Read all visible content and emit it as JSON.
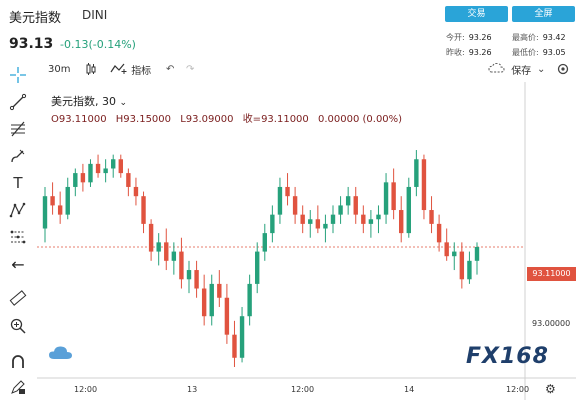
{
  "header": {
    "symbol_name": "美元指数",
    "symbol_code": "DINI",
    "last_price": "93.13",
    "change": "-0.13(-0.14%)",
    "trade_button": "交易",
    "fullscreen_button": "全屏",
    "stats": {
      "open_label": "今开:",
      "open_value": "93.26",
      "high_label": "最高价:",
      "high_value": "93.42",
      "prev_close_label": "昨收:",
      "prev_close_value": "93.26",
      "low_label": "最低价:",
      "low_value": "93.05"
    }
  },
  "toolbar": {
    "interval": "30m",
    "indicators_label": "指标",
    "save_label": "保存"
  },
  "legend": {
    "title": "美元指数, 30",
    "open": "O93.11000",
    "high": "H93.15000",
    "low": "L93.09000",
    "close": "收=93.11000",
    "change": "0.00000 (0.00%)"
  },
  "price_tag": "93.11000",
  "y_axis_label": "93.00000",
  "x_axis_labels": [
    "12:00",
    "13",
    "12:00",
    "14",
    "12:00"
  ],
  "logo_text": "FX168",
  "colors": {
    "up": "#26a17b",
    "down": "#e0533f",
    "accent": "#2aa4d8"
  },
  "chart_data": {
    "type": "candlestick",
    "ylim": [
      92.85,
      93.45
    ],
    "current_price": 93.11,
    "candles": [
      [
        93.15,
        93.24,
        93.12,
        93.22
      ],
      [
        93.22,
        93.25,
        93.18,
        93.2
      ],
      [
        93.2,
        93.23,
        93.16,
        93.18
      ],
      [
        93.18,
        93.26,
        93.17,
        93.24
      ],
      [
        93.24,
        93.28,
        93.22,
        93.27
      ],
      [
        93.27,
        93.29,
        93.23,
        93.25
      ],
      [
        93.25,
        93.3,
        93.24,
        93.29
      ],
      [
        93.29,
        93.31,
        93.26,
        93.27
      ],
      [
        93.27,
        93.3,
        93.25,
        93.28
      ],
      [
        93.28,
        93.31,
        93.26,
        93.3
      ],
      [
        93.3,
        93.31,
        93.26,
        93.27
      ],
      [
        93.27,
        93.28,
        93.22,
        93.24
      ],
      [
        93.24,
        93.26,
        93.2,
        93.22
      ],
      [
        93.22,
        93.23,
        93.14,
        93.16
      ],
      [
        93.16,
        93.17,
        93.08,
        93.1
      ],
      [
        93.1,
        93.14,
        93.07,
        93.12
      ],
      [
        93.12,
        93.15,
        93.06,
        93.08
      ],
      [
        93.08,
        93.12,
        93.05,
        93.1
      ],
      [
        93.1,
        93.13,
        93.02,
        93.04
      ],
      [
        93.04,
        93.08,
        93.01,
        93.06
      ],
      [
        93.06,
        93.08,
        93.0,
        93.02
      ],
      [
        93.02,
        93.05,
        92.94,
        92.96
      ],
      [
        92.96,
        93.05,
        92.94,
        93.03
      ],
      [
        93.03,
        93.06,
        92.98,
        93.0
      ],
      [
        93.0,
        93.03,
        92.9,
        92.92
      ],
      [
        92.92,
        92.95,
        92.85,
        92.87
      ],
      [
        92.87,
        92.98,
        92.86,
        92.96
      ],
      [
        92.96,
        93.05,
        92.94,
        93.03
      ],
      [
        93.03,
        93.12,
        93.01,
        93.1
      ],
      [
        93.1,
        93.16,
        93.08,
        93.14
      ],
      [
        93.14,
        93.2,
        93.12,
        93.18
      ],
      [
        93.18,
        93.26,
        93.16,
        93.24
      ],
      [
        93.24,
        93.27,
        93.2,
        93.22
      ],
      [
        93.22,
        93.24,
        93.16,
        93.18
      ],
      [
        93.18,
        93.2,
        93.14,
        93.16
      ],
      [
        93.16,
        93.19,
        93.13,
        93.17
      ],
      [
        93.17,
        93.2,
        93.14,
        93.15
      ],
      [
        93.15,
        93.18,
        93.12,
        93.16
      ],
      [
        93.16,
        93.2,
        93.14,
        93.18
      ],
      [
        93.18,
        93.22,
        93.16,
        93.2
      ],
      [
        93.2,
        93.24,
        93.18,
        93.22
      ],
      [
        93.22,
        93.24,
        93.16,
        93.18
      ],
      [
        93.18,
        93.2,
        93.14,
        93.16
      ],
      [
        93.16,
        93.19,
        93.13,
        93.17
      ],
      [
        93.17,
        93.2,
        93.14,
        93.18
      ],
      [
        93.18,
        93.27,
        93.16,
        93.25
      ],
      [
        93.25,
        93.28,
        93.17,
        93.19
      ],
      [
        93.19,
        93.22,
        93.12,
        93.14
      ],
      [
        93.14,
        93.26,
        93.13,
        93.24
      ],
      [
        93.24,
        93.32,
        93.22,
        93.3
      ],
      [
        93.3,
        93.31,
        93.17,
        93.19
      ],
      [
        93.19,
        93.22,
        93.14,
        93.16
      ],
      [
        93.16,
        93.18,
        93.1,
        93.12
      ],
      [
        93.12,
        93.15,
        93.08,
        93.09
      ],
      [
        93.09,
        93.12,
        93.06,
        93.1
      ],
      [
        93.1,
        93.12,
        93.02,
        93.04
      ],
      [
        93.04,
        93.1,
        93.03,
        93.08
      ],
      [
        93.08,
        93.12,
        93.05,
        93.11
      ]
    ]
  }
}
